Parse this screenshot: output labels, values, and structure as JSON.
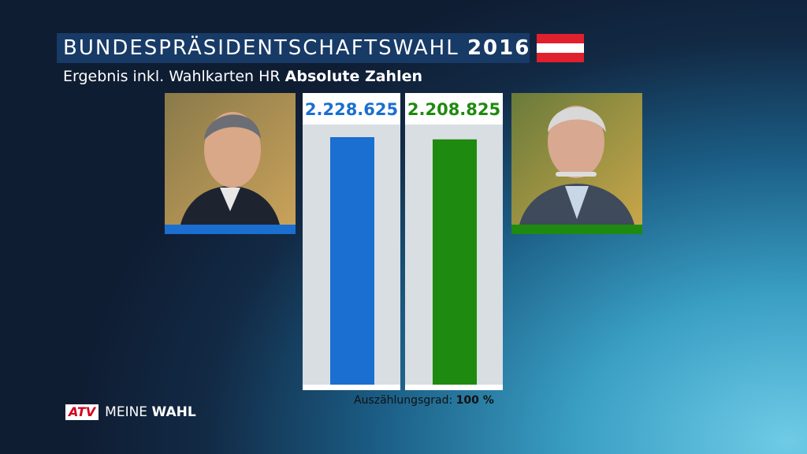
{
  "header": {
    "title": "BUNDESPRÄSIDENTSCHAFTSWAHL",
    "title_year": "2016",
    "subtitle": "Ergebnis inkl. Wahlkarten HR",
    "subtitle_bold": "Absolute Zahlen"
  },
  "chart_data": {
    "type": "bar",
    "categories": [
      null,
      null
    ],
    "values": [
      2228625,
      2208825
    ],
    "value_labels": [
      "2.228.625",
      "2.208.825"
    ],
    "colors": [
      "#1a6fd0",
      "#1f8a10"
    ]
  },
  "footer": {
    "counting_label": "Auszählungsgrad:",
    "counting_value": "100 %"
  },
  "logo": {
    "brand": "ATV",
    "text": "MEINE",
    "text_bold": "WAHL"
  }
}
